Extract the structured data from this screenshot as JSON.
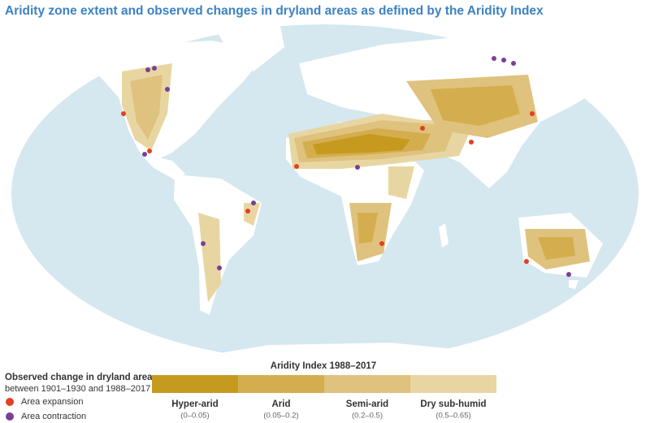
{
  "title": "Aridity zone extent and observed changes in dryland areas as defined by the Aridity Index",
  "change_legend": {
    "title": "Observed change in dryland area",
    "subtitle": "between 1901–1930 and 1988–2017",
    "items": [
      {
        "label": "Area expansion",
        "color": "#e2401f"
      },
      {
        "label": "Area contraction",
        "color": "#7a3f96"
      }
    ]
  },
  "aridity_legend": {
    "title": "Aridity Index 1988–2017",
    "classes": [
      {
        "label": "Hyper-arid",
        "range": "(0–0.05)",
        "color": "#c59a1f"
      },
      {
        "label": "Arid",
        "range": "(0.05–0.2)",
        "color": "#d4ae4e"
      },
      {
        "label": "Semi-arid",
        "range": "(0.2–0.5)",
        "color": "#dfc27e"
      },
      {
        "label": "Dry sub-humid",
        "range": "(0.5–0.65)",
        "color": "#e8d6a2"
      }
    ]
  }
}
